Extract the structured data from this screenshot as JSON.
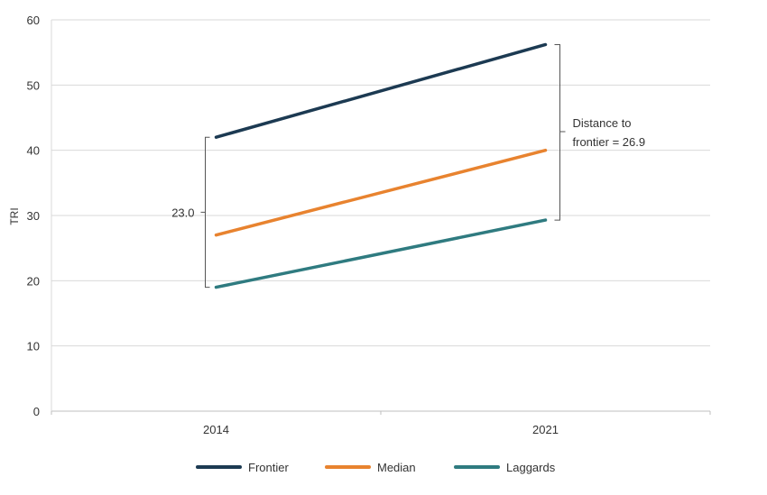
{
  "chart_data": {
    "type": "line",
    "title": "",
    "xlabel": "",
    "ylabel": "TRI",
    "categories": [
      "2014",
      "2021"
    ],
    "ylim": [
      0,
      60
    ],
    "yticks": [
      0,
      10,
      20,
      30,
      40,
      50,
      60
    ],
    "grid": true,
    "legend_position": "bottom",
    "series": [
      {
        "name": "Frontier",
        "values": [
          42.0,
          56.2
        ],
        "color": "#1c3a52"
      },
      {
        "name": "Median",
        "values": [
          27.0,
          40.0
        ],
        "color": "#e8832f"
      },
      {
        "name": "Laggards",
        "values": [
          19.0,
          29.3
        ],
        "color": "#2f7b80"
      }
    ],
    "annotations": [
      {
        "text": "23.0",
        "category": "2014",
        "from": 19.0,
        "to": 42.0,
        "side": "left"
      },
      {
        "text_lines": [
          "Distance to",
          "frontier = 26.9"
        ],
        "category": "2021",
        "from": 29.3,
        "to": 56.2,
        "side": "right"
      }
    ]
  }
}
